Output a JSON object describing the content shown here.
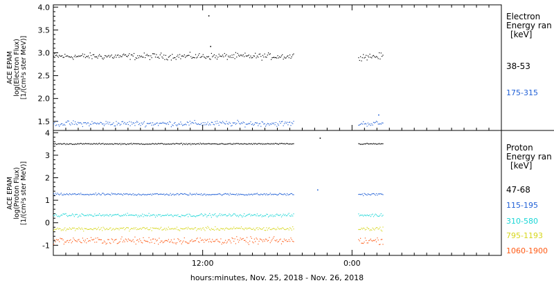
{
  "chart_data": [
    {
      "type": "scatter",
      "panel": "electron",
      "ylabel_lines": [
        "ACE EPAM",
        "log(Electron Flux)",
        "[1/(cm²s ster MeV)]"
      ],
      "ylim": [
        1.3,
        4.05
      ],
      "yticks": [
        "1.5",
        "2.0",
        "2.5",
        "3.0",
        "3.5",
        "4.0"
      ],
      "legend_title": [
        "Electron",
        "Energy ran",
        "[keV]"
      ],
      "series": [
        {
          "name": "38-53",
          "color": "#000000",
          "level": 2.93,
          "jitter": 0.06,
          "outliers": [
            {
              "x": 12.6,
              "y": 3.15
            },
            {
              "x": 12.45,
              "y": 3.82
            }
          ]
        },
        {
          "name": "175-315",
          "color": "#1f5fd6",
          "level": 1.46,
          "jitter": 0.05,
          "outliers": [
            {
              "x": 26.1,
              "y": 1.65
            }
          ]
        }
      ]
    },
    {
      "type": "scatter",
      "panel": "proton",
      "ylabel_lines": [
        "ACE EPAM",
        "log(Proton Flux)",
        "[1/(cm²s ster MeV)]"
      ],
      "ylim": [
        -1.45,
        4.1
      ],
      "yticks": [
        "-1",
        "0",
        "1",
        "2",
        "3",
        "4"
      ],
      "legend_title": [
        "Proton",
        "Energy ran",
        "[keV]"
      ],
      "series": [
        {
          "name": "47-68",
          "color": "#000000",
          "level": 3.52,
          "jitter": 0.025,
          "outliers": [
            {
              "x": 21.4,
              "y": 3.78
            }
          ]
        },
        {
          "name": "115-195",
          "color": "#1f5fd6",
          "level": 1.28,
          "jitter": 0.04,
          "outliers": [
            {
              "x": 21.2,
              "y": 1.48
            }
          ]
        },
        {
          "name": "310-580",
          "color": "#19d6d6",
          "level": 0.35,
          "jitter": 0.06,
          "outliers": []
        },
        {
          "name": "795-1193",
          "color": "#d6d619",
          "level": -0.25,
          "jitter": 0.07,
          "outliers": []
        },
        {
          "name": "1060-1900",
          "color": "#ff5a14",
          "level": -0.78,
          "jitter": 0.13,
          "outliers": []
        }
      ]
    }
  ],
  "x_axis": {
    "title": "hours:minutes, Nov. 25, 2018 - Nov. 26, 2018",
    "range_hours": [
      0,
      36
    ],
    "labeled_ticks": [
      {
        "hour": 12,
        "label": "12:00"
      },
      {
        "hour": 24,
        "label": "0:00"
      }
    ],
    "minor_step_hours": 1,
    "data_segments": [
      [
        0,
        19.3
      ],
      [
        24.5,
        26.5
      ]
    ]
  }
}
